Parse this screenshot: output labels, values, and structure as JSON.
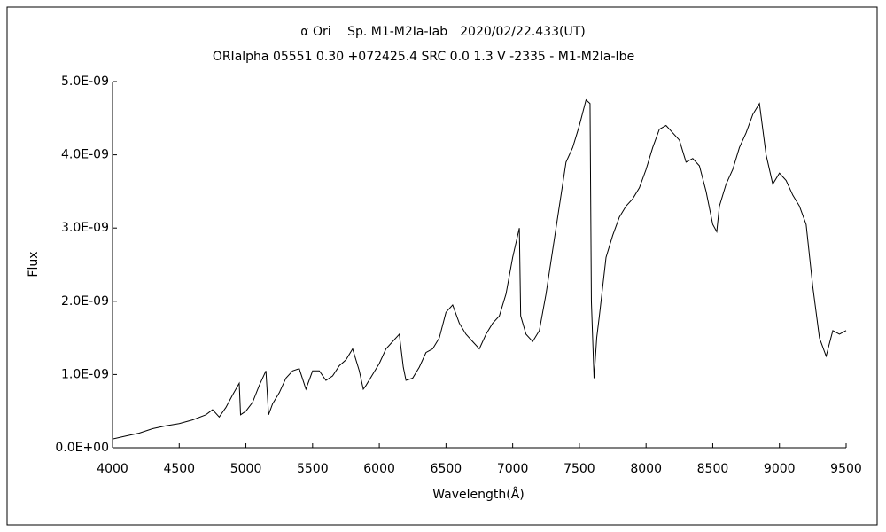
{
  "chart_data": {
    "type": "line",
    "title": "α Ori　 Sp. M1-M2Ia-Iab　2020/02/22.433(UT)",
    "subtitle": "ORIalpha 05551 0.30 +072425.4 SRC 0.0 1.3 V -2335 - M1-M2Ia-Ibe",
    "x_label": "Wavelength(Å)",
    "y_label": "Flux",
    "color": "#000000",
    "grid": false,
    "xlim": [
      4000,
      9500
    ],
    "xticks": [
      4000,
      4500,
      5000,
      5500,
      6000,
      6500,
      7000,
      7500,
      8000,
      8500,
      9000,
      9500
    ],
    "ylim": [
      0,
      5e-09
    ],
    "yticks": [
      {
        "value": 0,
        "label": "0.0E+00"
      },
      {
        "value": 1e-09,
        "label": "1.0E-09"
      },
      {
        "value": 2e-09,
        "label": "2.0E-09"
      },
      {
        "value": 3e-09,
        "label": "3.0E-09"
      },
      {
        "value": 4e-09,
        "label": "4.0E-09"
      },
      {
        "value": 5e-09,
        "label": "5.0E-09"
      }
    ],
    "x": [
      4000,
      4100,
      4200,
      4300,
      4400,
      4500,
      4600,
      4700,
      4750,
      4800,
      4850,
      4900,
      4950,
      4960,
      5000,
      5050,
      5100,
      5150,
      5170,
      5200,
      5250,
      5300,
      5350,
      5400,
      5450,
      5500,
      5550,
      5600,
      5650,
      5700,
      5750,
      5800,
      5850,
      5880,
      5900,
      5950,
      6000,
      6050,
      6100,
      6150,
      6180,
      6200,
      6250,
      6300,
      6350,
      6400,
      6450,
      6500,
      6550,
      6600,
      6650,
      6700,
      6750,
      6800,
      6850,
      6900,
      6950,
      7000,
      7050,
      7060,
      7100,
      7150,
      7200,
      7250,
      7300,
      7350,
      7400,
      7450,
      7500,
      7550,
      7580,
      7590,
      7610,
      7630,
      7650,
      7700,
      7750,
      7800,
      7850,
      7900,
      7950,
      8000,
      8050,
      8100,
      8150,
      8200,
      8250,
      8300,
      8350,
      8400,
      8450,
      8500,
      8530,
      8550,
      8600,
      8650,
      8700,
      8750,
      8800,
      8850,
      8900,
      8950,
      9000,
      9050,
      9100,
      9150,
      9200,
      9250,
      9300,
      9350,
      9400,
      9450,
      9500
    ],
    "values": [
      1.2e-10,
      1.6e-10,
      2e-10,
      2.6e-10,
      3e-10,
      3.3e-10,
      3.8e-10,
      4.5e-10,
      5.2e-10,
      4.2e-10,
      5.5e-10,
      7.2e-10,
      8.8e-10,
      4.5e-10,
      5e-10,
      6.2e-10,
      8.5e-10,
      1.05e-09,
      4.5e-10,
      6e-10,
      7.5e-10,
      9.5e-10,
      1.05e-09,
      1.08e-09,
      8e-10,
      1.05e-09,
      1.05e-09,
      9.2e-10,
      9.8e-10,
      1.12e-09,
      1.2e-09,
      1.35e-09,
      1.05e-09,
      8e-10,
      8.5e-10,
      1e-09,
      1.15e-09,
      1.35e-09,
      1.45e-09,
      1.55e-09,
      1.1e-09,
      9.2e-10,
      9.5e-10,
      1.1e-09,
      1.3e-09,
      1.35e-09,
      1.5e-09,
      1.85e-09,
      1.95e-09,
      1.7e-09,
      1.55e-09,
      1.45e-09,
      1.35e-09,
      1.55e-09,
      1.7e-09,
      1.8e-09,
      2.1e-09,
      2.6e-09,
      3e-09,
      1.8e-09,
      1.55e-09,
      1.45e-09,
      1.6e-09,
      2.1e-09,
      2.7e-09,
      3.3e-09,
      3.9e-09,
      4.1e-09,
      4.4e-09,
      4.75e-09,
      4.7e-09,
      2e-09,
      9.5e-10,
      1.5e-09,
      1.8e-09,
      2.6e-09,
      2.9e-09,
      3.15e-09,
      3.3e-09,
      3.4e-09,
      3.55e-09,
      3.8e-09,
      4.1e-09,
      4.35e-09,
      4.4e-09,
      4.3e-09,
      4.2e-09,
      3.9e-09,
      3.95e-09,
      3.85e-09,
      3.5e-09,
      3.05e-09,
      2.95e-09,
      3.3e-09,
      3.6e-09,
      3.8e-09,
      4.1e-09,
      4.3e-09,
      4.55e-09,
      4.7e-09,
      4e-09,
      3.6e-09,
      3.75e-09,
      3.65e-09,
      3.45e-09,
      3.3e-09,
      3.05e-09,
      2.2e-09,
      1.5e-09,
      1.25e-09,
      1.6e-09,
      1.55e-09,
      1.6e-09
    ]
  }
}
